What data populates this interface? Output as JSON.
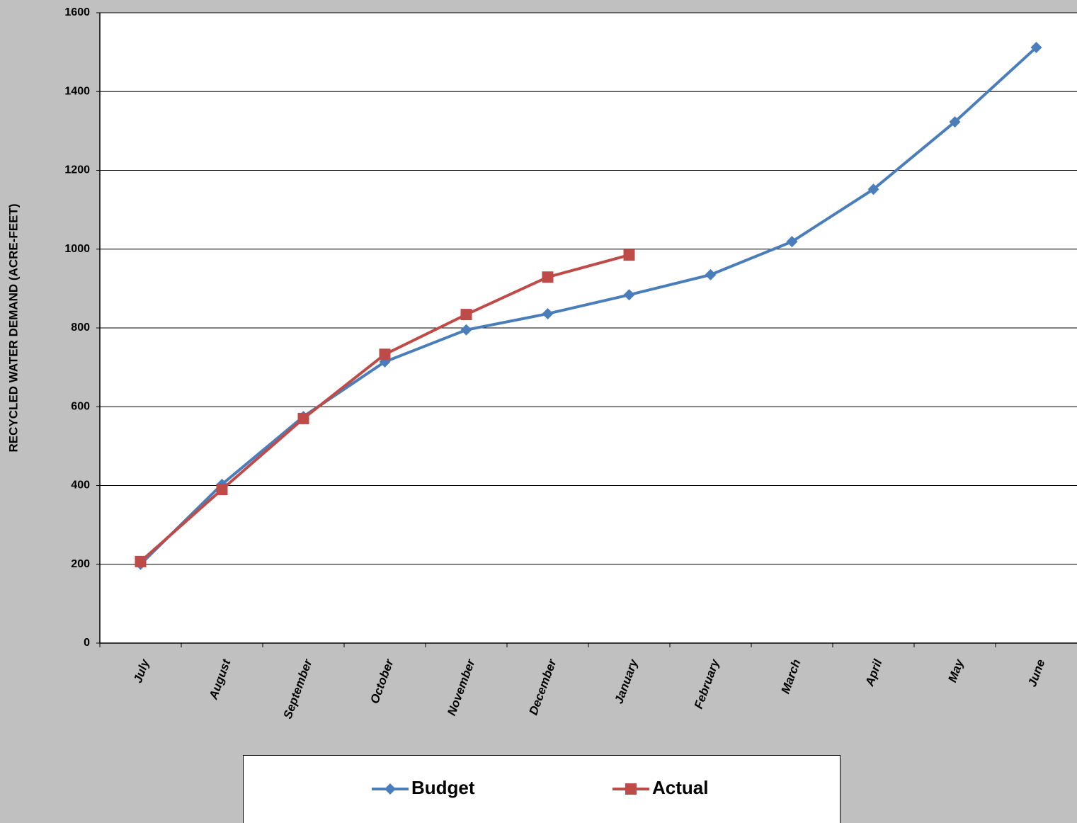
{
  "chart_data": {
    "type": "line",
    "y_label": "RECYCLED WATER DEMAND (ACRE-FEET)",
    "categories": [
      "July",
      "August",
      "September",
      "October",
      "November",
      "December",
      "January",
      "February",
      "March",
      "April",
      "May",
      "June"
    ],
    "series": [
      {
        "name": "Budget",
        "color": "#4a7ebb",
        "marker": "diamond",
        "values": [
          200,
          403,
          575,
          714,
          795,
          836,
          884,
          935,
          1019,
          1152,
          1323,
          1512
        ]
      },
      {
        "name": "Actual",
        "color": "#be4b48",
        "marker": "square",
        "values": [
          207,
          390,
          570,
          733,
          834,
          929,
          985,
          null,
          null,
          null,
          null,
          null
        ]
      }
    ],
    "ylim": [
      0,
      1600
    ],
    "yticks": [
      0,
      200,
      400,
      600,
      800,
      1000,
      1200,
      1400,
      1600
    ],
    "grid": true,
    "legend": "bottom"
  }
}
